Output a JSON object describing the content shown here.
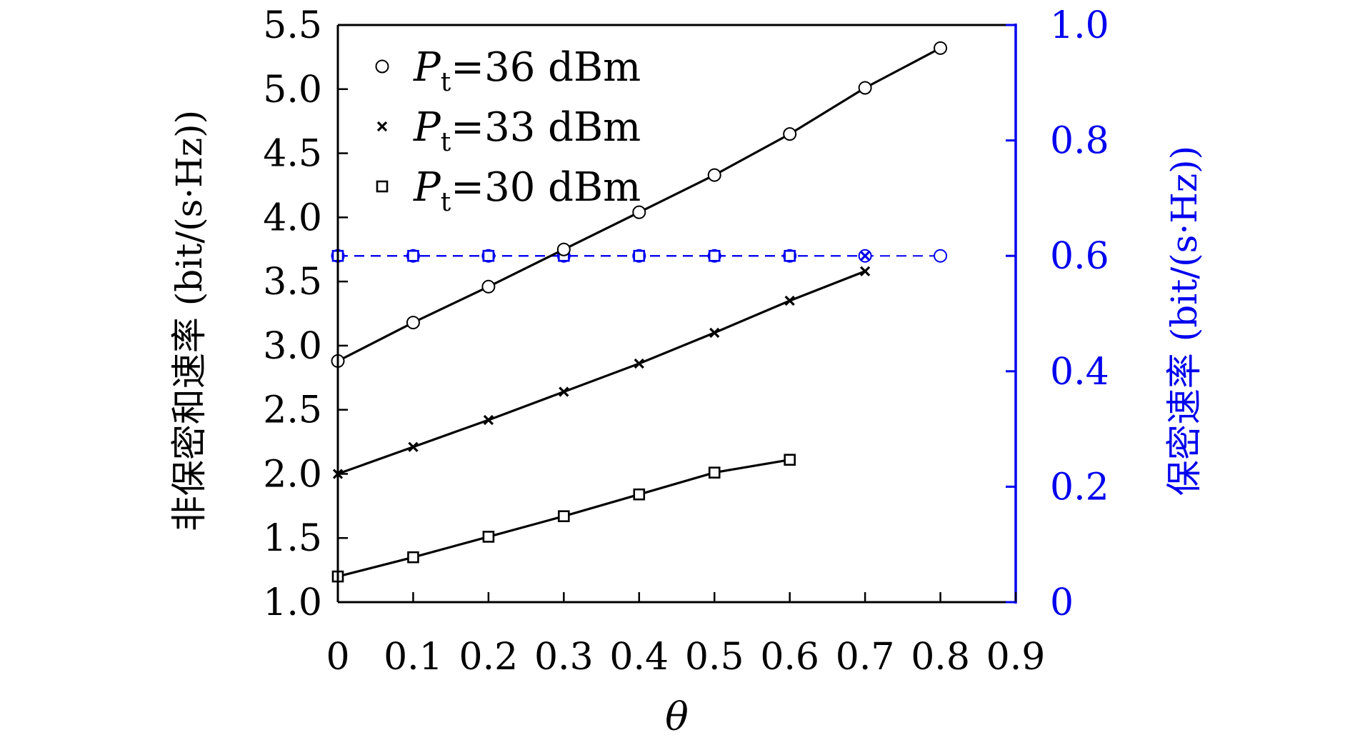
{
  "chart_data": {
    "type": "line",
    "xlabel": "θ",
    "ylabel": "非保密和速率 (bit/(s·Hz))",
    "ylabel_right": "保密速率 (bit/(s·Hz))",
    "xlim": [
      0,
      0.9
    ],
    "ylim": [
      1.0,
      5.5
    ],
    "ylim_right": [
      0,
      1.0
    ],
    "x_ticks": [
      "0",
      "0.1",
      "0.2",
      "0.3",
      "0.4",
      "0.5",
      "0.6",
      "0.7",
      "0.8",
      "0.9"
    ],
    "y_ticks": [
      "1.0",
      "1.5",
      "2.0",
      "2.5",
      "3.0",
      "3.5",
      "4.0",
      "4.5",
      "5.0",
      "5.5"
    ],
    "y_right_ticks": [
      "0",
      "0.2",
      "0.4",
      "0.6",
      "0.8",
      "1.0"
    ],
    "legend_position": "top-left",
    "grid": false,
    "colors": {
      "left_axis": "#000000",
      "right_axis": "#0000ee"
    },
    "series": [
      {
        "name": "Pt=36 dBm",
        "legend_label": {
          "symbol": "P",
          "subscript": "t",
          "rest": "=36 dBm"
        },
        "marker": "circle",
        "axis": "left",
        "x": [
          0,
          0.1,
          0.2,
          0.3,
          0.4,
          0.5,
          0.6,
          0.7,
          0.8
        ],
        "values": [
          2.88,
          3.18,
          3.46,
          3.75,
          4.04,
          4.33,
          4.65,
          5.01,
          5.32
        ]
      },
      {
        "name": "Pt=33 dBm",
        "legend_label": {
          "symbol": "P",
          "subscript": "t",
          "rest": "=33 dBm"
        },
        "marker": "x",
        "axis": "left",
        "x": [
          0,
          0.1,
          0.2,
          0.3,
          0.4,
          0.5,
          0.6,
          0.7
        ],
        "values": [
          2.0,
          2.21,
          2.42,
          2.64,
          2.86,
          3.1,
          3.35,
          3.58
        ]
      },
      {
        "name": "Pt=30 dBm",
        "legend_label": {
          "symbol": "P",
          "subscript": "t",
          "rest": "=30 dBm"
        },
        "marker": "square",
        "axis": "left",
        "x": [
          0,
          0.1,
          0.2,
          0.3,
          0.4,
          0.5,
          0.6
        ],
        "values": [
          1.2,
          1.35,
          1.51,
          1.67,
          1.84,
          2.01,
          2.11
        ]
      },
      {
        "marker": "circle",
        "axis": "right",
        "style": "dashed",
        "x": [
          0,
          0.1,
          0.2,
          0.3,
          0.4,
          0.5,
          0.6,
          0.7,
          0.8
        ],
        "values": [
          0.6,
          0.6,
          0.6,
          0.6,
          0.6,
          0.6,
          0.6,
          0.6,
          0.6
        ]
      },
      {
        "marker": "x",
        "axis": "right",
        "style": "dashed",
        "x": [
          0,
          0.1,
          0.2,
          0.3,
          0.4,
          0.5,
          0.6,
          0.7
        ],
        "values": [
          0.6,
          0.6,
          0.6,
          0.6,
          0.6,
          0.6,
          0.6,
          0.6
        ]
      },
      {
        "marker": "square",
        "axis": "right",
        "style": "dashed",
        "x": [
          0,
          0.1,
          0.2,
          0.3,
          0.4,
          0.5,
          0.6
        ],
        "values": [
          0.6,
          0.6,
          0.6,
          0.6,
          0.6,
          0.6,
          0.6
        ]
      }
    ]
  }
}
